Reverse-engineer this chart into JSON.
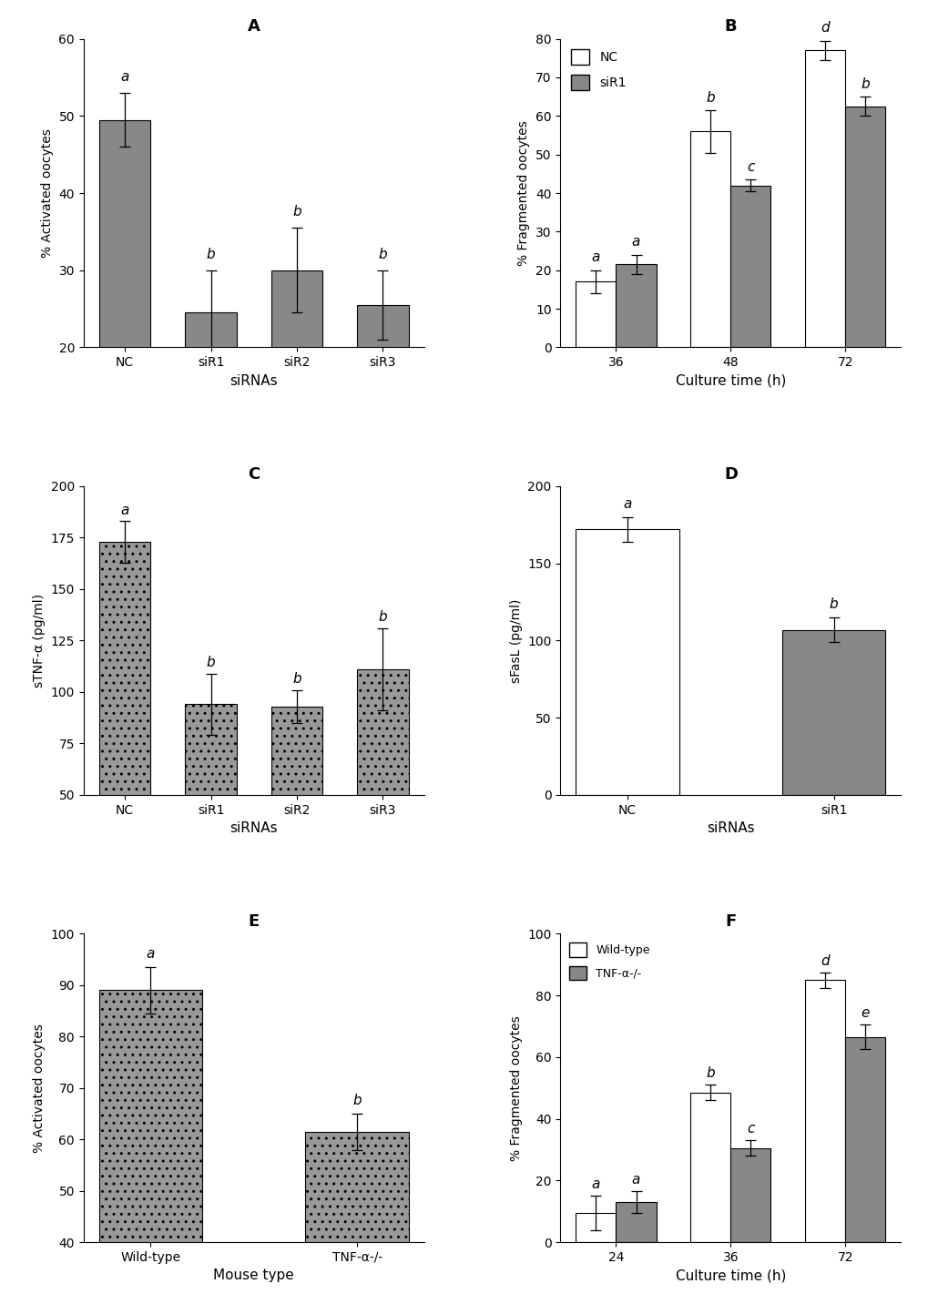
{
  "panel_A": {
    "title": "A",
    "categories": [
      "NC",
      "siR1",
      "siR2",
      "siR3"
    ],
    "values": [
      49.5,
      24.5,
      30.0,
      25.5
    ],
    "errors": [
      3.5,
      5.5,
      5.5,
      4.5
    ],
    "letters": [
      "a",
      "b",
      "b",
      "b"
    ],
    "bar_color": "#888888",
    "ylabel": "% Activated oocytes",
    "xlabel": "siRNAs",
    "ylim": [
      20,
      60
    ],
    "yticks": [
      20,
      30,
      40,
      50,
      60
    ]
  },
  "panel_B": {
    "title": "B",
    "time_points": [
      36,
      48,
      72
    ],
    "NC_values": [
      17.0,
      56.0,
      77.0
    ],
    "NC_errors": [
      3.0,
      5.5,
      2.5
    ],
    "siR1_values": [
      21.5,
      42.0,
      62.5
    ],
    "siR1_errors": [
      2.5,
      1.5,
      2.5
    ],
    "NC_letters": [
      "a",
      "b",
      "d"
    ],
    "siR1_letters": [
      "a",
      "c",
      "b"
    ],
    "NC_color": "#ffffff",
    "siR1_color": "#888888",
    "ylabel": "% Fragmented oocytes",
    "xlabel": "Culture time (h)",
    "ylim": [
      0,
      80
    ],
    "yticks": [
      0,
      10,
      20,
      30,
      40,
      50,
      60,
      70,
      80
    ]
  },
  "panel_C": {
    "title": "C",
    "categories": [
      "NC",
      "siR1",
      "siR2",
      "siR3"
    ],
    "values": [
      173.0,
      94.0,
      93.0,
      111.0
    ],
    "errors": [
      10.0,
      15.0,
      8.0,
      20.0
    ],
    "letters": [
      "a",
      "b",
      "b",
      "b"
    ],
    "bar_color": "#999999",
    "ylabel": "sTNF-α (pg/ml)",
    "xlabel": "siRNAs",
    "ylim": [
      50,
      200
    ],
    "yticks": [
      50,
      75,
      100,
      125,
      150,
      175,
      200
    ],
    "hatch": ".."
  },
  "panel_D": {
    "title": "D",
    "categories": [
      "NC",
      "siR1"
    ],
    "values": [
      172.0,
      107.0
    ],
    "errors": [
      8.0,
      8.0
    ],
    "letters": [
      "a",
      "b"
    ],
    "NC_color": "#ffffff",
    "siR1_color": "#888888",
    "ylabel": "sFasL (pg/ml)",
    "xlabel": "siRNAs",
    "ylim": [
      0,
      200
    ],
    "yticks": [
      0,
      50,
      100,
      150,
      200
    ]
  },
  "panel_E": {
    "title": "E",
    "categories": [
      "Wild-type",
      "TNF-α-/-"
    ],
    "values": [
      89.0,
      61.5
    ],
    "errors": [
      4.5,
      3.5
    ],
    "letters": [
      "a",
      "b"
    ],
    "bar_color": "#999999",
    "ylabel": "% Activated oocytes",
    "xlabel": "Mouse type",
    "ylim": [
      40,
      100
    ],
    "yticks": [
      40,
      50,
      60,
      70,
      80,
      90,
      100
    ],
    "hatch": ".."
  },
  "panel_F": {
    "title": "F",
    "time_points": [
      24,
      36,
      72
    ],
    "Wild_values": [
      9.5,
      48.5,
      85.0
    ],
    "Wild_errors": [
      5.5,
      2.5,
      2.5
    ],
    "TNF_values": [
      13.0,
      30.5,
      66.5
    ],
    "TNF_errors": [
      3.5,
      2.5,
      4.0
    ],
    "Wild_letters": [
      "a",
      "b",
      "d"
    ],
    "TNF_letters": [
      "a",
      "c",
      "e"
    ],
    "Wild_color": "#ffffff",
    "TNF_color": "#888888",
    "ylabel": "% Fragmented oocytes",
    "xlabel": "Culture time (h)",
    "ylim": [
      0,
      100
    ],
    "yticks": [
      0,
      20,
      40,
      60,
      80,
      100
    ]
  }
}
